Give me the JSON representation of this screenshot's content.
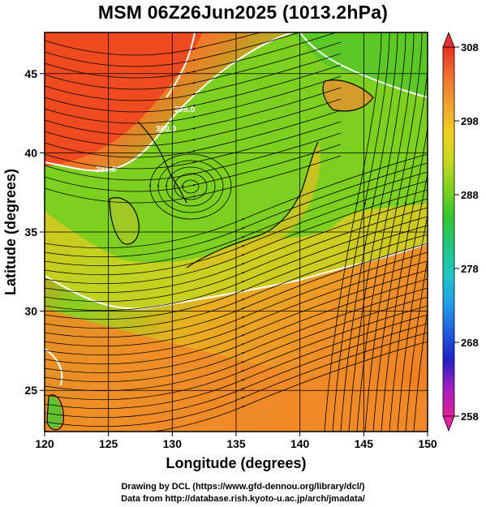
{
  "title": "MSM 06Z26Jun2025 (1013.2hPa)",
  "map": {
    "xlabel": "Longitude (degrees)",
    "ylabel": "Latitude  (degrees)",
    "lon_ticks": [
      "120",
      "125",
      "130",
      "135",
      "140",
      "145",
      "150"
    ],
    "lat_ticks": [
      "25",
      "30",
      "35",
      "40",
      "45"
    ],
    "lon_range": [
      120,
      150
    ],
    "lat_range": [
      22.4,
      47.6
    ],
    "contour_labels": [
      "300.0",
      "298.0",
      "298.0"
    ],
    "contour_color": "#ffffff",
    "streamline_color": "#000000",
    "grid_color": "#000000"
  },
  "colorbar": {
    "labels": [
      "308",
      "298",
      "288",
      "278",
      "268",
      "258"
    ],
    "values": [
      308,
      298,
      288,
      278,
      268,
      258
    ],
    "range": [
      258,
      308
    ],
    "colors": [
      "#e0209a",
      "#a020c0",
      "#2020c8",
      "#2060e0",
      "#20a0e8",
      "#20c8c0",
      "#20c880",
      "#30c830",
      "#80d020",
      "#c8d820",
      "#f0d020",
      "#f0a030",
      "#f07030",
      "#e83020"
    ]
  },
  "credits": {
    "line1": "Drawing by DCL (https://www.gfd-dennou.org/library/dcl/)",
    "line2": "Data from http://database.rish.kyoto-u.ac.jp/arch/jmadata/"
  }
}
